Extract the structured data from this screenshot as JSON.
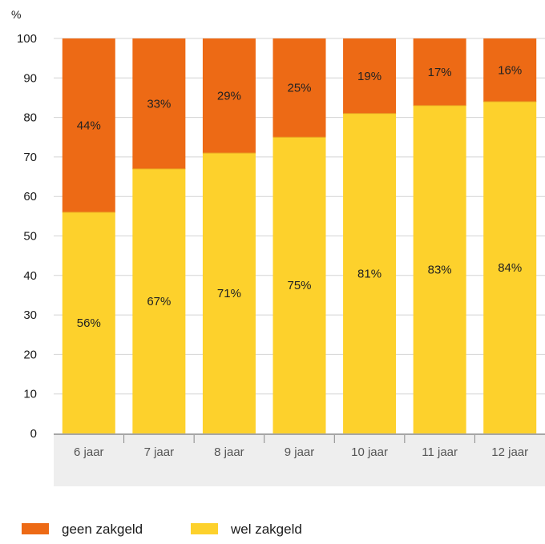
{
  "chart_data": {
    "type": "bar",
    "stacked": true,
    "title": "",
    "xlabel": "",
    "ylabel": "%",
    "ylim": [
      0,
      100
    ],
    "yticks": [
      0,
      10,
      20,
      30,
      40,
      50,
      60,
      70,
      80,
      90,
      100
    ],
    "grid": true,
    "legend_position": "bottom-left",
    "categories": [
      "6 jaar",
      "7 jaar",
      "8 jaar",
      "9 jaar",
      "10 jaar",
      "11 jaar",
      "12 jaar"
    ],
    "series": [
      {
        "name": "wel zakgeld",
        "color": "#fdd12c",
        "values": [
          56,
          67,
          71,
          75,
          81,
          83,
          84
        ],
        "labels": [
          "56%",
          "67%",
          "71%",
          "75%",
          "81%",
          "83%",
          "84%"
        ]
      },
      {
        "name": "geen zakgeld",
        "color": "#ed6a15",
        "values": [
          44,
          33,
          29,
          25,
          19,
          17,
          16
        ],
        "labels": [
          "44%",
          "33%",
          "29%",
          "25%",
          "19%",
          "17%",
          "16%"
        ]
      }
    ],
    "legend_order": [
      "geen zakgeld",
      "wel zakgeld"
    ],
    "colors": {
      "grid": "#d4d4d4",
      "axis": "#888888",
      "category_band": "#eeeeee"
    }
  }
}
